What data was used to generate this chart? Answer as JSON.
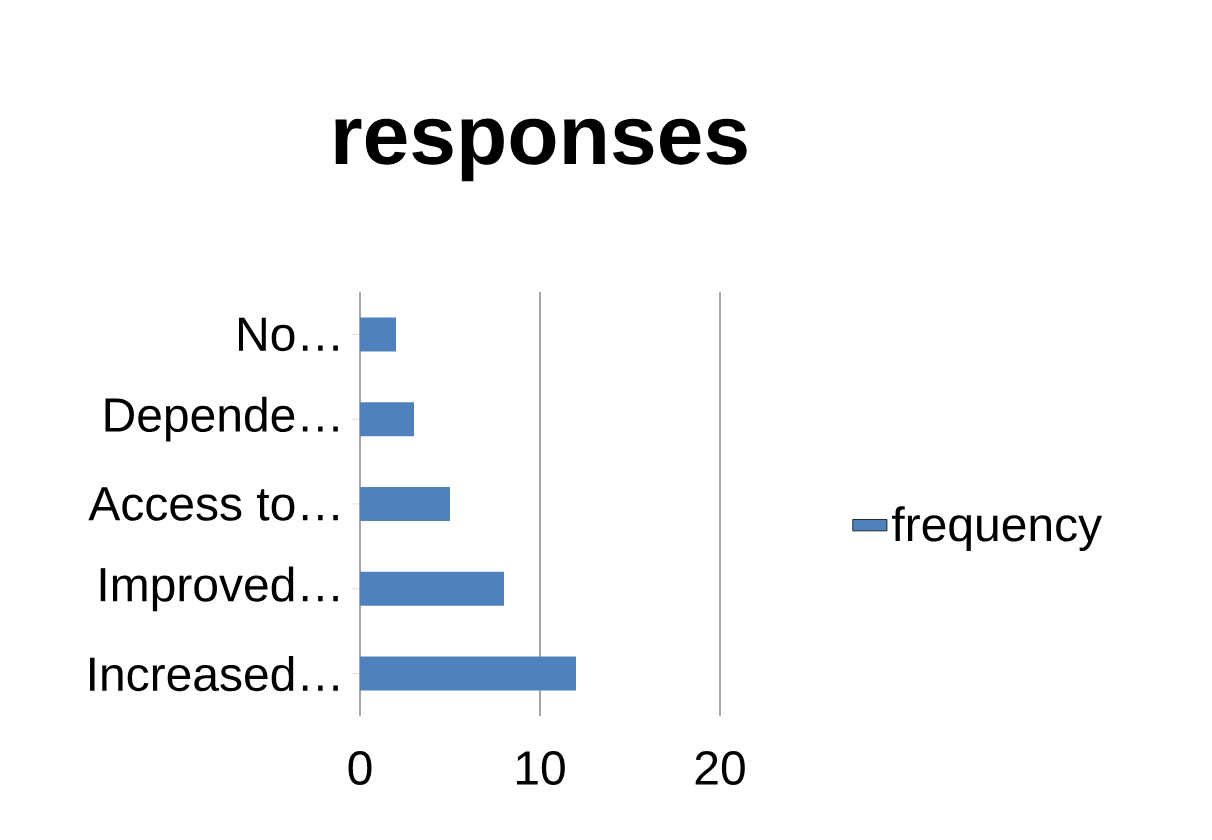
{
  "chart_data": {
    "type": "bar",
    "orientation": "horizontal",
    "title": "responses",
    "categories": [
      "No…",
      "Depende…",
      "Access to…",
      "Improved…",
      "Increased…"
    ],
    "series": [
      {
        "name": "frequency",
        "color": "#4f81bd",
        "values": [
          2,
          3,
          5,
          8,
          12
        ]
      }
    ],
    "xlim": [
      0,
      20
    ],
    "xticks": [
      0,
      10,
      20
    ],
    "grid": "x",
    "legend": "right"
  }
}
